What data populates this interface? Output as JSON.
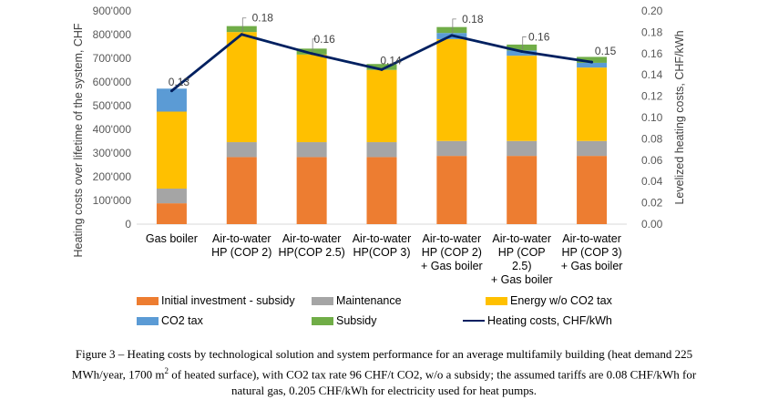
{
  "chart_data": {
    "type": "bar",
    "stacked": true,
    "categories": [
      [
        "Gas boiler"
      ],
      [
        "Air-to-water",
        "HP (COP 2)"
      ],
      [
        "Air-to-water",
        "HP(COP 2.5)"
      ],
      [
        "Air-to-water",
        "HP(COP 3)"
      ],
      [
        "Air-to-water",
        "HP (COP 2)",
        "+ Gas boiler"
      ],
      [
        "Air-to-water",
        "HP (COP",
        "2.5)",
        "+ Gas boiler"
      ],
      [
        "Air-to-water",
        "HP (COP 3)",
        "+ Gas boiler"
      ]
    ],
    "series": [
      {
        "name": "Initial investment - subsidy",
        "color": "#ED7D31",
        "values": [
          88000,
          283000,
          283000,
          283000,
          288000,
          288000,
          288000
        ]
      },
      {
        "name": "Maintenance",
        "color": "#A5A5A5",
        "values": [
          62000,
          63000,
          63000,
          63000,
          63000,
          63000,
          63000
        ]
      },
      {
        "name": "Energy w/o CO2 tax",
        "color": "#FFC000",
        "values": [
          325000,
          465000,
          370000,
          305000,
          430000,
          360000,
          310000
        ]
      },
      {
        "name": "CO2 tax",
        "color": "#5B9BD5",
        "values": [
          97000,
          0,
          0,
          0,
          26000,
          22000,
          20000
        ]
      },
      {
        "name": "Subsidy",
        "color": "#70AD47",
        "values": [
          0,
          25000,
          25000,
          25000,
          25000,
          25000,
          25000
        ]
      }
    ],
    "line": {
      "name": "Heating costs, CHF/kWh",
      "color": "#002060",
      "values": [
        0.125,
        0.178,
        0.16,
        0.145,
        0.177,
        0.162,
        0.152
      ],
      "labels": [
        "0.13",
        "0.18",
        "0.16",
        "0.14",
        "0.18",
        "0.16",
        "0.15"
      ]
    },
    "y_left": {
      "label": "Heating costs over lifetime of the system, CHF",
      "range": [
        0,
        900000
      ],
      "ticks": [
        0,
        100000,
        200000,
        300000,
        400000,
        500000,
        600000,
        700000,
        800000,
        900000
      ],
      "tick_labels": [
        "0",
        "100'000",
        "200'000",
        "300'000",
        "400'000",
        "500'000",
        "600'000",
        "700'000",
        "800'000",
        "900'000"
      ]
    },
    "y_right": {
      "label": "Levelized heating costs, CHF/kWh",
      "range": [
        0,
        0.2
      ],
      "ticks": [
        0,
        0.02,
        0.04,
        0.06,
        0.08,
        0.1,
        0.12,
        0.14,
        0.16,
        0.18,
        0.2
      ],
      "tick_labels": [
        "0.00",
        "0.02",
        "0.04",
        "0.06",
        "0.08",
        "0.10",
        "0.12",
        "0.14",
        "0.16",
        "0.18",
        "0.20"
      ]
    },
    "legend_position": "bottom"
  },
  "legend": [
    {
      "label": "Initial investment - subsidy",
      "color": "#ED7D31",
      "kind": "box"
    },
    {
      "label": "Maintenance",
      "color": "#A5A5A5",
      "kind": "box"
    },
    {
      "label": "Energy w/o CO2 tax",
      "color": "#FFC000",
      "kind": "box"
    },
    {
      "label": "CO2 tax",
      "color": "#5B9BD5",
      "kind": "box"
    },
    {
      "label": "Subsidy",
      "color": "#70AD47",
      "kind": "box"
    },
    {
      "label": "Heating costs, CHF/kWh",
      "color": "#002060",
      "kind": "line"
    }
  ],
  "caption": {
    "line1": "Figure 3 – Heating costs by technological solution and system performance for an average multifamily building (heat demand 225",
    "line2_pre": "MWh/year, 1700 m",
    "line2_sup": "2",
    "line2_post": " of heated surface), with CO2 tax rate 96 CHF/t CO2, w/o a subsidy; the assumed tariffs are 0.08 CHF/kWh for",
    "line3": "natural gas, 0.205 CHF/kWh for electricity used for heat pumps."
  }
}
